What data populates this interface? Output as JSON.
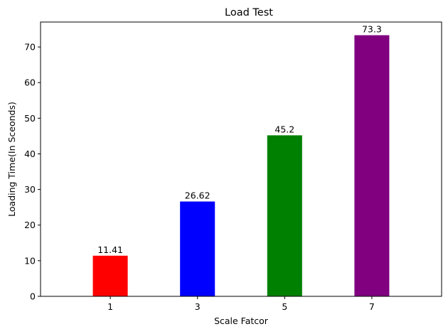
{
  "chart_data": {
    "type": "bar",
    "title": "Load Test",
    "xlabel": "Scale Fatcor",
    "ylabel": "Loading Time(In Sceonds)",
    "categories": [
      "1",
      "3",
      "5",
      "7"
    ],
    "values": [
      11.41,
      26.62,
      45.2,
      73.3
    ],
    "value_labels": [
      "11.41",
      "26.62",
      "45.2",
      "73.3"
    ],
    "colors": [
      "#ff0000",
      "#0000ff",
      "#008000",
      "#800080"
    ],
    "ylim": [
      0,
      77
    ],
    "yticks": [
      0,
      10,
      20,
      30,
      40,
      50,
      60,
      70
    ],
    "grid": false,
    "legend": "none"
  }
}
